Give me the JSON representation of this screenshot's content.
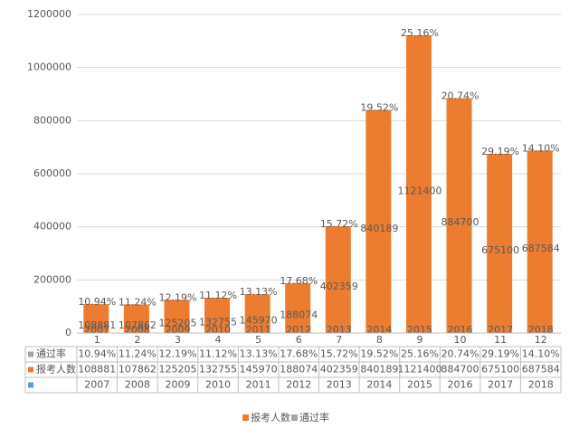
{
  "chart_data": {
    "type": "bar",
    "categories": [
      "1",
      "2",
      "3",
      "4",
      "5",
      "6",
      "7",
      "8",
      "9",
      "10",
      "11",
      "12"
    ],
    "years": [
      "2007",
      "2008",
      "2009",
      "2010",
      "2011",
      "2012",
      "2013",
      "2014",
      "2015",
      "2016",
      "2017",
      "2018"
    ],
    "series": [
      {
        "name": "报考人数",
        "color": "#ec7c30",
        "values": [
          108881,
          107862,
          125205,
          132755,
          145970,
          188074,
          402359,
          840189,
          1121400,
          884700,
          675100,
          687584
        ]
      },
      {
        "name": "通过率",
        "color": "#a5a5a5",
        "values": [
          10.94,
          11.24,
          12.19,
          11.12,
          13.13,
          17.68,
          15.72,
          19.52,
          25.16,
          20.74,
          29.19,
          14.1
        ],
        "value_labels": [
          "10.94%",
          "11.24%",
          "12.19%",
          "11.12%",
          "13.13%",
          "17.68%",
          "15.72%",
          "19.52%",
          "25.16%",
          "20.74%",
          "29.19%",
          "14.10%"
        ]
      }
    ],
    "ylim": [
      0,
      1200000
    ],
    "yticks": [
      0,
      200000,
      400000,
      600000,
      800000,
      1000000,
      1200000
    ],
    "grid": true
  }
}
